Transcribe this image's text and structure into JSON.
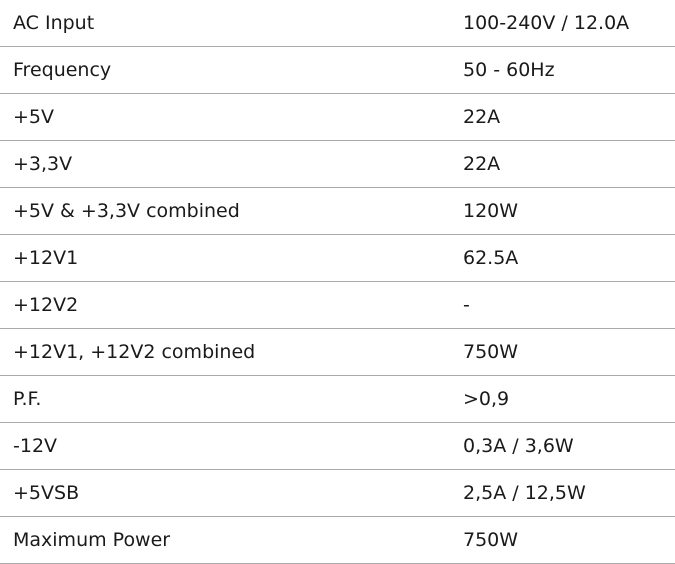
{
  "table": {
    "rows": [
      [
        "AC Input",
        "100-240V / 12.0A"
      ],
      [
        "Frequency",
        "50 - 60Hz"
      ],
      [
        "+5V",
        "22A"
      ],
      [
        "+3,3V",
        "22A"
      ],
      [
        "+5V & +3,3V combined",
        "120W"
      ],
      [
        "+12V1",
        "62.5A"
      ],
      [
        "+12V2",
        "-"
      ],
      [
        "+12V1, +12V2 combined",
        "750W"
      ],
      [
        "P.F.",
        ">0,9"
      ],
      [
        "-12V",
        "0,3A / 3,6W"
      ],
      [
        "+5VSB",
        "2,5A / 12,5W"
      ],
      [
        "Maximum Power",
        "750W"
      ]
    ]
  }
}
